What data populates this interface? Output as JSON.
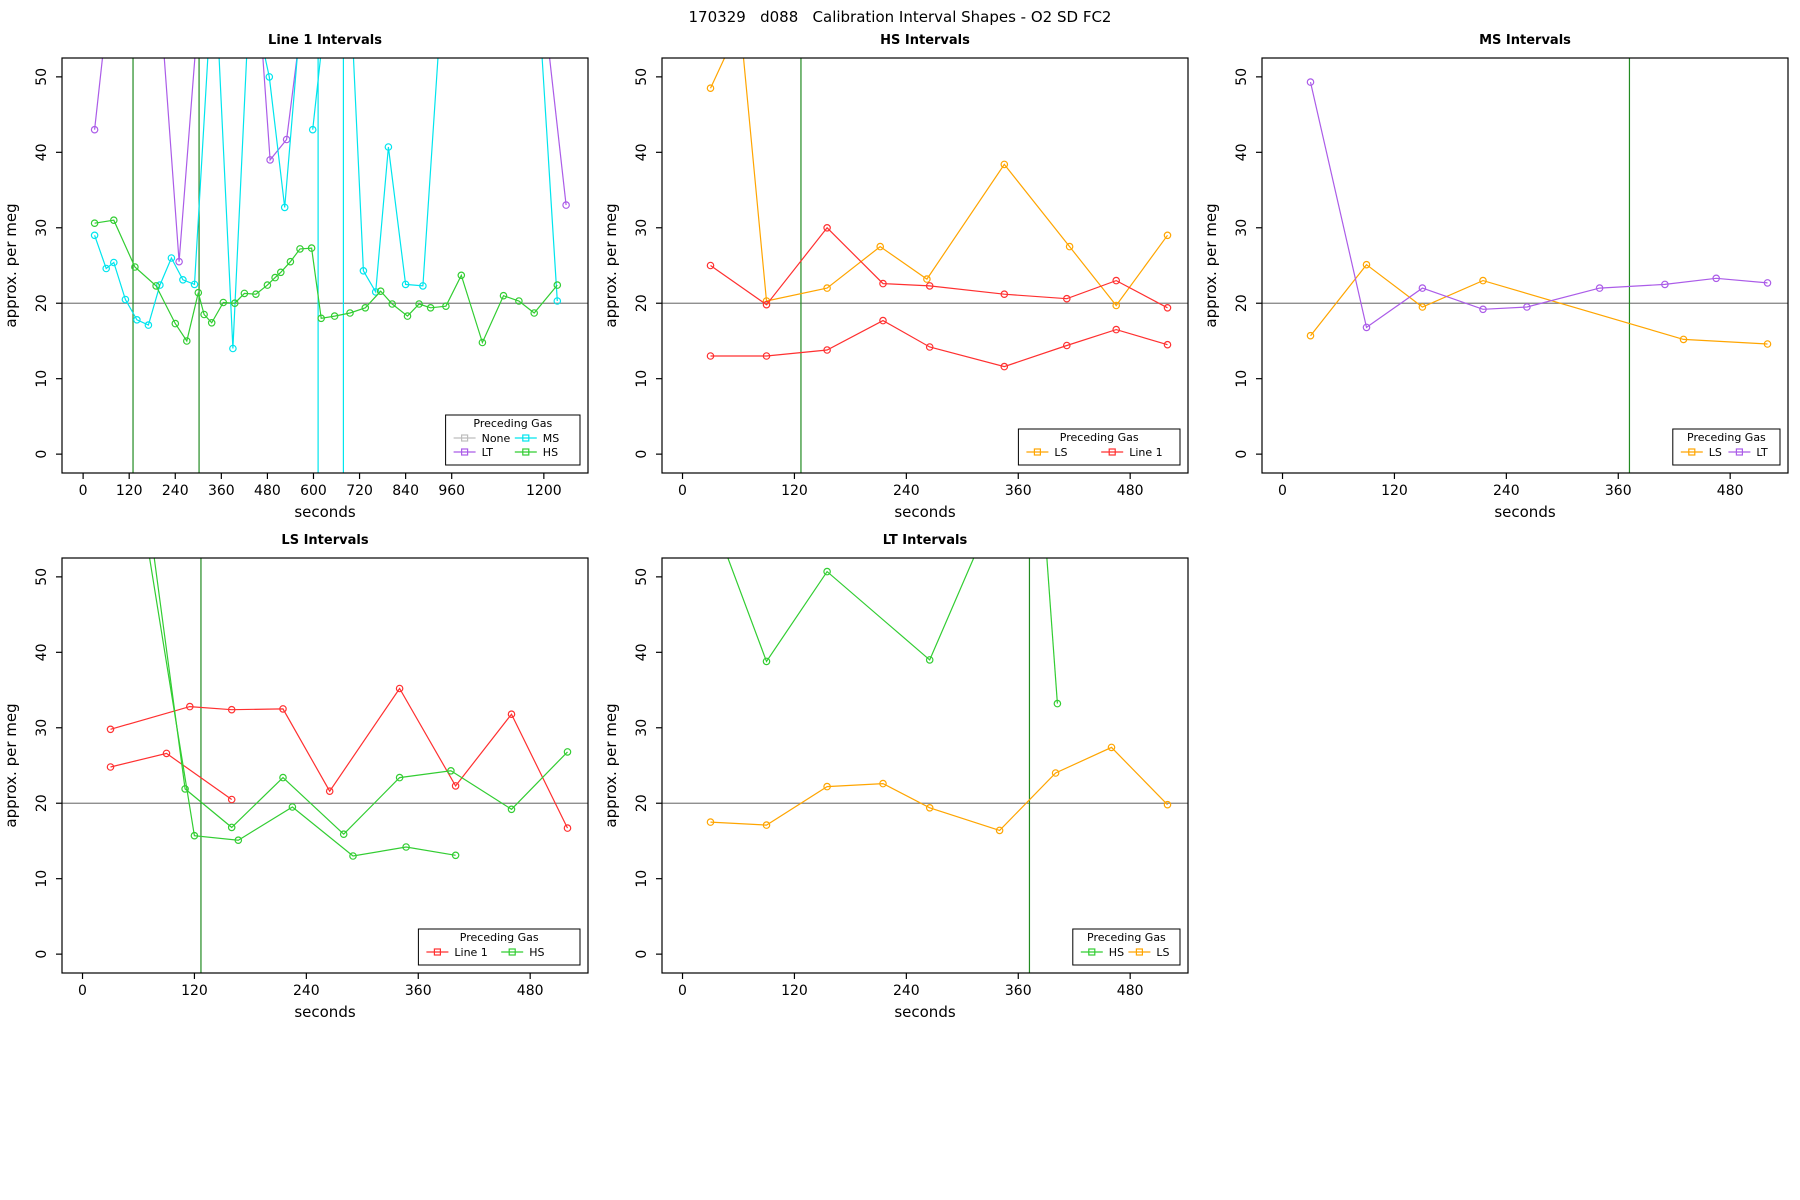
{
  "header": {
    "title": "170329   d088   Calibration Interval Shapes - O2 SD FC2"
  },
  "colors": {
    "red": "#FF3030",
    "green": "#32CD32",
    "orange": "#FFA500",
    "cyan": "#00E5EE",
    "purple": "#AB5CE8",
    "gray_none": "#BEBEBE",
    "reference_green": "#228B22",
    "reference_gray": "#808080"
  },
  "chart_data": [
    {
      "type": "line",
      "title": "Line 1 Intervals",
      "xlabel": "seconds",
      "ylabel": "approx. per meg",
      "xlim": [
        -55,
        1315
      ],
      "ylim": [
        -2.5,
        52.5
      ],
      "xticks": [
        0,
        120,
        240,
        360,
        480,
        600,
        720,
        840,
        960,
        1200
      ],
      "yticks": [
        0,
        10,
        20,
        30,
        40,
        50
      ],
      "hline": {
        "y": 20,
        "color": "#808080"
      },
      "vlines": [
        {
          "x": 130,
          "color": "#228B22"
        },
        {
          "x": 302,
          "color": "#228B22"
        }
      ],
      "legend": {
        "title": "Preceding Gas",
        "ncol": 2,
        "entries": [
          {
            "label": "None",
            "color": "#BEBEBE"
          },
          {
            "label": "LT",
            "color": "#AB5CE8"
          },
          {
            "label": "MS",
            "color": "#00E5EE"
          },
          {
            "label": "HS",
            "color": "#32CD32"
          }
        ]
      },
      "series": [
        {
          "name": "None",
          "color": "#BEBEBE",
          "lines": []
        },
        {
          "name": "LT",
          "color": "#AB5CE8",
          "lines": [
            [
              [
                30,
                43
              ],
              [
                60,
                57
              ]
            ],
            [
              [
                205,
                57
              ],
              [
                250,
                25.5
              ],
              [
                298,
                57
              ]
            ],
            [
              [
                462,
                57
              ],
              [
                487,
                39
              ],
              [
                530,
                41.7
              ],
              [
                568,
                57
              ]
            ],
            [
              [
                1205,
                57
              ],
              [
                1258,
                33
              ]
            ]
          ]
        },
        {
          "name": "MS",
          "color": "#00E5EE",
          "lines": [
            [
              [
                30,
                29
              ],
              [
                60,
                24.6
              ],
              [
                80,
                25.4
              ],
              [
                110,
                20.5
              ],
              [
                140,
                17.8
              ],
              [
                170,
                17.1
              ],
              [
                200,
                22.4
              ],
              [
                230,
                26
              ],
              [
                260,
                23.1
              ],
              [
                290,
                22.5
              ],
              [
                330,
                57
              ]
            ],
            [
              [
                350,
                57
              ],
              [
                390,
                14
              ],
              [
                430,
                57
              ]
            ],
            [
              [
                455,
                57
              ],
              [
                485,
                50
              ],
              [
                525,
                32.7
              ],
              [
                565,
                57
              ]
            ],
            [
              [
                598,
                43
              ],
              [
                628,
                57
              ]
            ],
            [
              [
                612,
                57
              ],
              [
                612,
                -4
              ]
            ],
            [
              [
                678,
                57
              ],
              [
                678,
                -4
              ]
            ],
            [
              [
                700,
                57
              ],
              [
                730,
                24.3
              ],
              [
                762,
                21.5
              ],
              [
                795,
                40.7
              ],
              [
                840,
                22.5
              ],
              [
                885,
                22.3
              ],
              [
                930,
                57
              ]
            ],
            [
              [
                1190,
                57
              ],
              [
                1235,
                20.3
              ]
            ]
          ]
        },
        {
          "name": "HS",
          "color": "#32CD32",
          "lines": [
            [
              [
                30,
                30.6
              ],
              [
                80,
                31
              ],
              [
                135,
                24.8
              ],
              [
                190,
                22.3
              ],
              [
                240,
                17.3
              ],
              [
                270,
                15
              ],
              [
                300,
                21.4
              ],
              [
                315,
                18.5
              ],
              [
                335,
                17.4
              ],
              [
                365,
                20.1
              ],
              [
                395,
                20
              ],
              [
                420,
                21.3
              ],
              [
                450,
                21.2
              ],
              [
                480,
                22.4
              ],
              [
                500,
                23.4
              ],
              [
                515,
                24.1
              ],
              [
                540,
                25.5
              ],
              [
                565,
                27.2
              ],
              [
                595,
                27.3
              ],
              [
                620,
                18
              ],
              [
                655,
                18.3
              ],
              [
                695,
                18.7
              ],
              [
                735,
                19.4
              ],
              [
                775,
                21.6
              ],
              [
                805,
                19.9
              ],
              [
                845,
                18.3
              ],
              [
                875,
                19.9
              ],
              [
                905,
                19.4
              ],
              [
                945,
                19.6
              ],
              [
                985,
                23.7
              ],
              [
                1040,
                14.8
              ],
              [
                1095,
                21
              ],
              [
                1135,
                20.3
              ],
              [
                1175,
                18.7
              ],
              [
                1235,
                22.4
              ]
            ]
          ]
        }
      ]
    },
    {
      "type": "line",
      "title": "HS Intervals",
      "xlabel": "seconds",
      "ylabel": "approx. per meg",
      "xlim": [
        -22,
        542
      ],
      "ylim": [
        -2.5,
        52.5
      ],
      "xticks": [
        0,
        120,
        240,
        360,
        480
      ],
      "yticks": [
        0,
        10,
        20,
        30,
        40,
        50
      ],
      "hline": {
        "y": 20,
        "color": "#808080"
      },
      "vlines": [
        {
          "x": 127,
          "color": "#228B22"
        }
      ],
      "legend": {
        "title": "Preceding Gas",
        "ncol": 2,
        "entries": [
          {
            "label": "LS",
            "color": "#FFA500"
          },
          {
            "label": "Line 1",
            "color": "#FF3030"
          }
        ]
      },
      "series": [
        {
          "name": "LS",
          "color": "#FFA500",
          "lines": [
            [
              [
                30,
                48.5
              ],
              [
                62,
                57
              ],
              [
                90,
                20.3
              ],
              [
                155,
                22
              ],
              [
                212,
                27.5
              ],
              [
                262,
                23.2
              ],
              [
                345,
                38.4
              ],
              [
                415,
                27.5
              ],
              [
                465,
                19.7
              ],
              [
                520,
                29
              ]
            ]
          ]
        },
        {
          "name": "Line 1",
          "color": "#FF3030",
          "lines": [
            [
              [
                30,
                25
              ],
              [
                90,
                19.8
              ],
              [
                155,
                30
              ],
              [
                215,
                22.6
              ],
              [
                265,
                22.3
              ],
              [
                345,
                21.2
              ],
              [
                412,
                20.6
              ],
              [
                465,
                23
              ],
              [
                520,
                19.4
              ]
            ],
            [
              [
                30,
                13
              ],
              [
                90,
                13
              ],
              [
                155,
                13.8
              ],
              [
                215,
                17.7
              ],
              [
                265,
                14.2
              ],
              [
                345,
                11.6
              ],
              [
                412,
                14.4
              ],
              [
                465,
                16.5
              ],
              [
                520,
                14.5
              ]
            ]
          ]
        }
      ]
    },
    {
      "type": "line",
      "title": "MS Intervals",
      "xlabel": "seconds",
      "ylabel": "approx. per meg",
      "xlim": [
        -22,
        542
      ],
      "ylim": [
        -2.5,
        52.5
      ],
      "xticks": [
        0,
        120,
        240,
        360,
        480
      ],
      "yticks": [
        0,
        10,
        20,
        30,
        40,
        50
      ],
      "hline": {
        "y": 20,
        "color": "#808080"
      },
      "vlines": [
        {
          "x": 372,
          "color": "#228B22"
        }
      ],
      "legend": {
        "title": "Preceding Gas",
        "ncol": 2,
        "entries": [
          {
            "label": "LS",
            "color": "#FFA500"
          },
          {
            "label": "LT",
            "color": "#AB5CE8"
          }
        ]
      },
      "series": [
        {
          "name": "LS",
          "color": "#FFA500",
          "lines": [
            [
              [
                30,
                15.7
              ],
              [
                90,
                25.1
              ],
              [
                150,
                19.5
              ],
              [
                215,
                23
              ],
              [
                430,
                15.2
              ],
              [
                520,
                14.6
              ]
            ]
          ]
        },
        {
          "name": "LT",
          "color": "#AB5CE8",
          "lines": [
            [
              [
                30,
                49.3
              ],
              [
                90,
                16.8
              ],
              [
                150,
                22
              ],
              [
                215,
                19.2
              ],
              [
                262,
                19.5
              ],
              [
                340,
                22
              ],
              [
                410,
                22.5
              ],
              [
                465,
                23.3
              ],
              [
                520,
                22.7
              ]
            ]
          ]
        }
      ]
    },
    {
      "type": "line",
      "title": "LS Intervals",
      "xlabel": "seconds",
      "ylabel": "approx. per meg",
      "xlim": [
        -22,
        542
      ],
      "ylim": [
        -2.5,
        52.5
      ],
      "xticks": [
        0,
        120,
        240,
        360,
        480
      ],
      "yticks": [
        0,
        10,
        20,
        30,
        40,
        50
      ],
      "hline": {
        "y": 20,
        "color": "#808080"
      },
      "vlines": [
        {
          "x": 127,
          "color": "#228B22"
        }
      ],
      "legend": {
        "title": "Preceding Gas",
        "ncol": 2,
        "entries": [
          {
            "label": "Line 1",
            "color": "#FF3030"
          },
          {
            "label": "HS",
            "color": "#32CD32"
          }
        ]
      },
      "series": [
        {
          "name": "Line 1",
          "color": "#FF3030",
          "lines": [
            [
              [
                30,
                29.8
              ],
              [
                115,
                32.8
              ],
              [
                160,
                32.4
              ],
              [
                215,
                32.5
              ],
              [
                265,
                21.6
              ],
              [
                340,
                35.2
              ],
              [
                400,
                22.3
              ],
              [
                460,
                31.8
              ],
              [
                520,
                16.7
              ]
            ],
            [
              [
                30,
                24.8
              ],
              [
                90,
                26.6
              ],
              [
                160,
                20.5
              ]
            ]
          ]
        },
        {
          "name": "HS",
          "color": "#32CD32",
          "lines": [
            [
              [
                72,
                57
              ],
              [
                110,
                21.9
              ],
              [
                160,
                16.8
              ],
              [
                215,
                23.4
              ],
              [
                280,
                15.9
              ],
              [
                340,
                23.4
              ],
              [
                395,
                24.3
              ],
              [
                460,
                19.2
              ],
              [
                520,
                26.8
              ]
            ],
            [
              [
                66,
                57
              ],
              [
                120,
                15.7
              ],
              [
                167,
                15.1
              ],
              [
                225,
                19.5
              ],
              [
                290,
                13
              ],
              [
                347,
                14.2
              ],
              [
                400,
                13.1
              ]
            ]
          ]
        }
      ]
    },
    {
      "type": "line",
      "title": "LT Intervals",
      "xlabel": "seconds",
      "ylabel": "approx. per meg",
      "xlim": [
        -22,
        542
      ],
      "ylim": [
        -2.5,
        52.5
      ],
      "xticks": [
        0,
        120,
        240,
        360,
        480
      ],
      "yticks": [
        0,
        10,
        20,
        30,
        40,
        50
      ],
      "hline": {
        "y": 20,
        "color": "#808080"
      },
      "vlines": [
        {
          "x": 372,
          "color": "#228B22"
        }
      ],
      "legend": {
        "title": "Preceding Gas",
        "ncol": 2,
        "entries": [
          {
            "label": "HS",
            "color": "#32CD32"
          },
          {
            "label": "LS",
            "color": "#FFA500"
          }
        ]
      },
      "series": [
        {
          "name": "HS",
          "color": "#32CD32",
          "lines": [
            [
              [
                35,
                57
              ],
              [
                90,
                38.8
              ],
              [
                155,
                50.7
              ],
              [
                265,
                39
              ],
              [
                328,
                57
              ]
            ],
            [
              [
                388,
                57
              ],
              [
                402,
                33.2
              ]
            ]
          ]
        },
        {
          "name": "LS",
          "color": "#FFA500",
          "lines": [
            [
              [
                30,
                17.5
              ],
              [
                90,
                17.1
              ],
              [
                155,
                22.2
              ],
              [
                215,
                22.6
              ],
              [
                265,
                19.4
              ],
              [
                340,
                16.4
              ],
              [
                400,
                24
              ],
              [
                460,
                27.4
              ],
              [
                520,
                19.8
              ]
            ]
          ]
        }
      ]
    }
  ]
}
